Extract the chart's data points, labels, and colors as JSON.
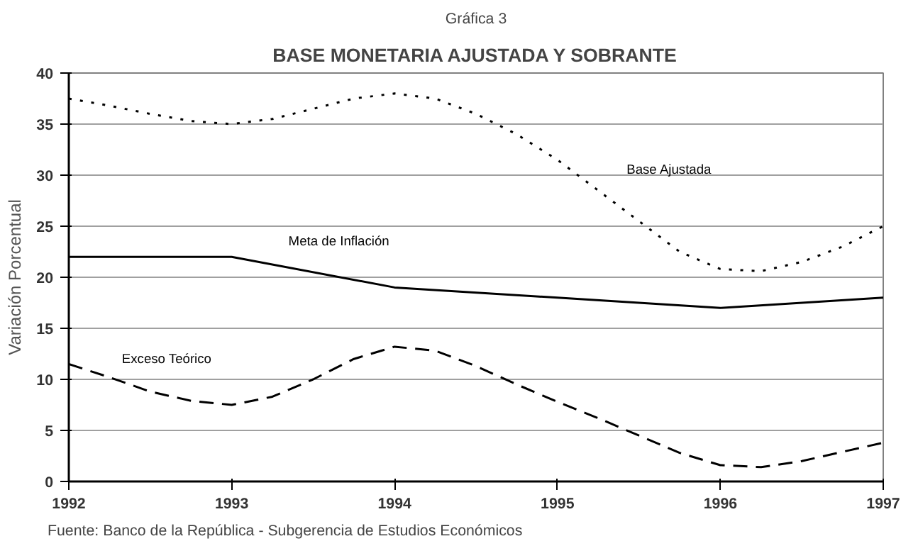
{
  "chart_data": {
    "type": "line",
    "title": "Gráfica 3",
    "subtitle": "BASE MONETARIA AJUSTADA Y SOBRANTE",
    "ylabel": "Variación Porcentual",
    "annotations": [
      "Fuente: Banco de la República - Subgerencia de Estudios Económicos"
    ],
    "xlim": [
      1992,
      1997
    ],
    "xticks": [
      {
        "value": 1992,
        "label": "1992"
      },
      {
        "value": 1993,
        "label": "1993"
      },
      {
        "value": 1994,
        "label": "1994"
      },
      {
        "value": 1995,
        "label": "1995"
      },
      {
        "value": 1996,
        "label": "1996"
      },
      {
        "value": 1997,
        "label": "1997"
      }
    ],
    "ylim": [
      0,
      40
    ],
    "yticks": [
      0,
      5,
      10,
      15,
      20,
      25,
      30,
      35,
      40
    ],
    "grid": "y",
    "legend": false,
    "marker": "none",
    "series": [
      {
        "name": "Base Ajustada",
        "color": "#000000",
        "line_style": "dotted",
        "x": [
          1992,
          1992.25,
          1992.5,
          1992.75,
          1993,
          1993.25,
          1993.5,
          1993.75,
          1994,
          1994.25,
          1994.5,
          1994.75,
          1995,
          1995.25,
          1995.5,
          1995.75,
          1996,
          1996.25,
          1996.5,
          1996.75,
          1997
        ],
        "values": [
          37.5,
          36.8,
          36,
          35.3,
          35,
          35.5,
          36.5,
          37.5,
          38,
          37.5,
          36,
          34,
          31.5,
          28.5,
          25.5,
          22.5,
          20.8,
          20.6,
          21.5,
          23,
          25
        ]
      },
      {
        "name": "Meta de Inflación",
        "color": "#000000",
        "line_style": "solid",
        "x": [
          1992,
          1993,
          1994,
          1995,
          1996,
          1997
        ],
        "values": [
          22,
          22,
          19,
          18,
          17,
          18
        ]
      },
      {
        "name": "Exceso Teórico",
        "color": "#000000",
        "line_style": "dashed",
        "x": [
          1992,
          1992.25,
          1992.5,
          1992.75,
          1993,
          1993.25,
          1993.5,
          1993.75,
          1994,
          1994.25,
          1994.5,
          1994.75,
          1995,
          1995.25,
          1995.5,
          1995.75,
          1996,
          1996.25,
          1996.5,
          1996.75,
          1997
        ],
        "values": [
          11.5,
          10.2,
          8.8,
          7.9,
          7.5,
          8.3,
          10,
          12,
          13.2,
          12.8,
          11.3,
          9.5,
          7.8,
          6.2,
          4.5,
          2.8,
          1.6,
          1.4,
          2,
          2.9,
          3.8
        ]
      }
    ]
  }
}
